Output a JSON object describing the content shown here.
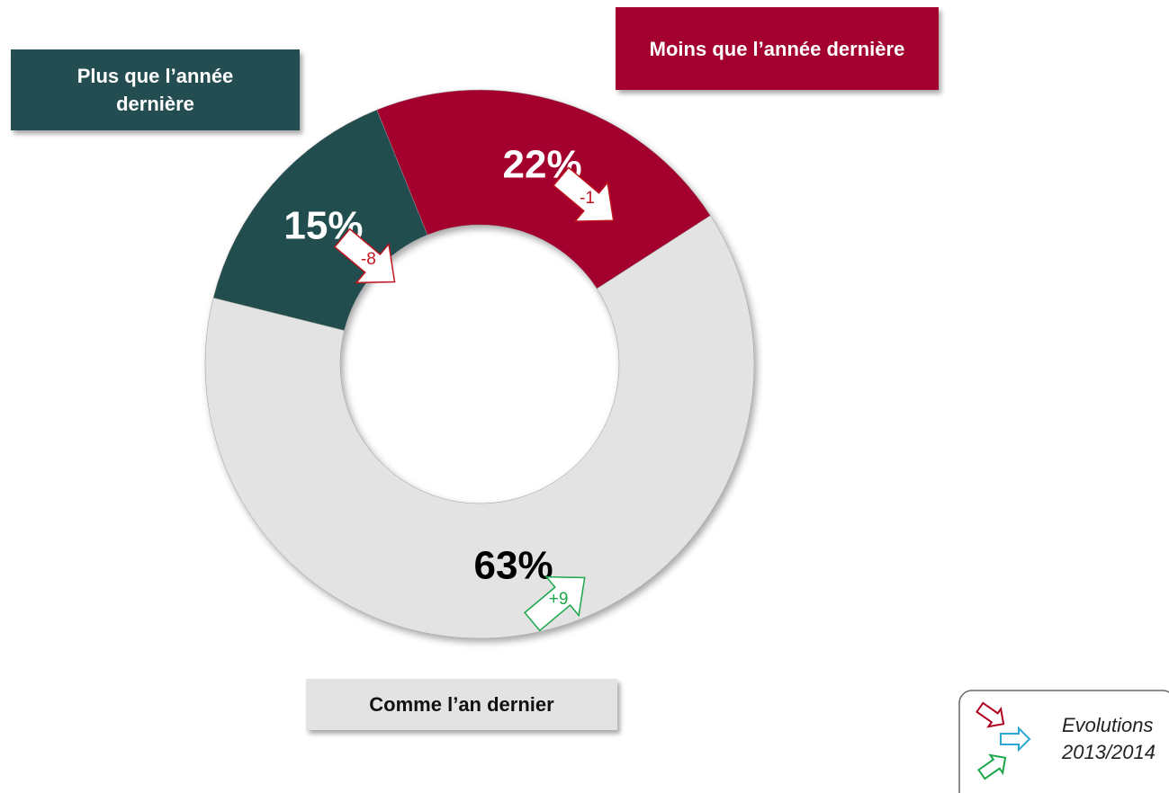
{
  "chart_data": {
    "type": "pie",
    "categories": [
      "Moins que l’année dernière",
      "Comme l’an dernier",
      "Plus que l’année dernière"
    ],
    "values": [
      22,
      63,
      15
    ],
    "value_labels": [
      "22%",
      "63%",
      "15%"
    ],
    "colors": [
      "#a3002f",
      "#e3e3e3",
      "#234d50"
    ],
    "changes": [
      -1,
      9,
      -8
    ],
    "change_labels": [
      "-1",
      "+9",
      "-8"
    ],
    "legend_note": [
      "Evolutions",
      "2013/2014"
    ]
  }
}
